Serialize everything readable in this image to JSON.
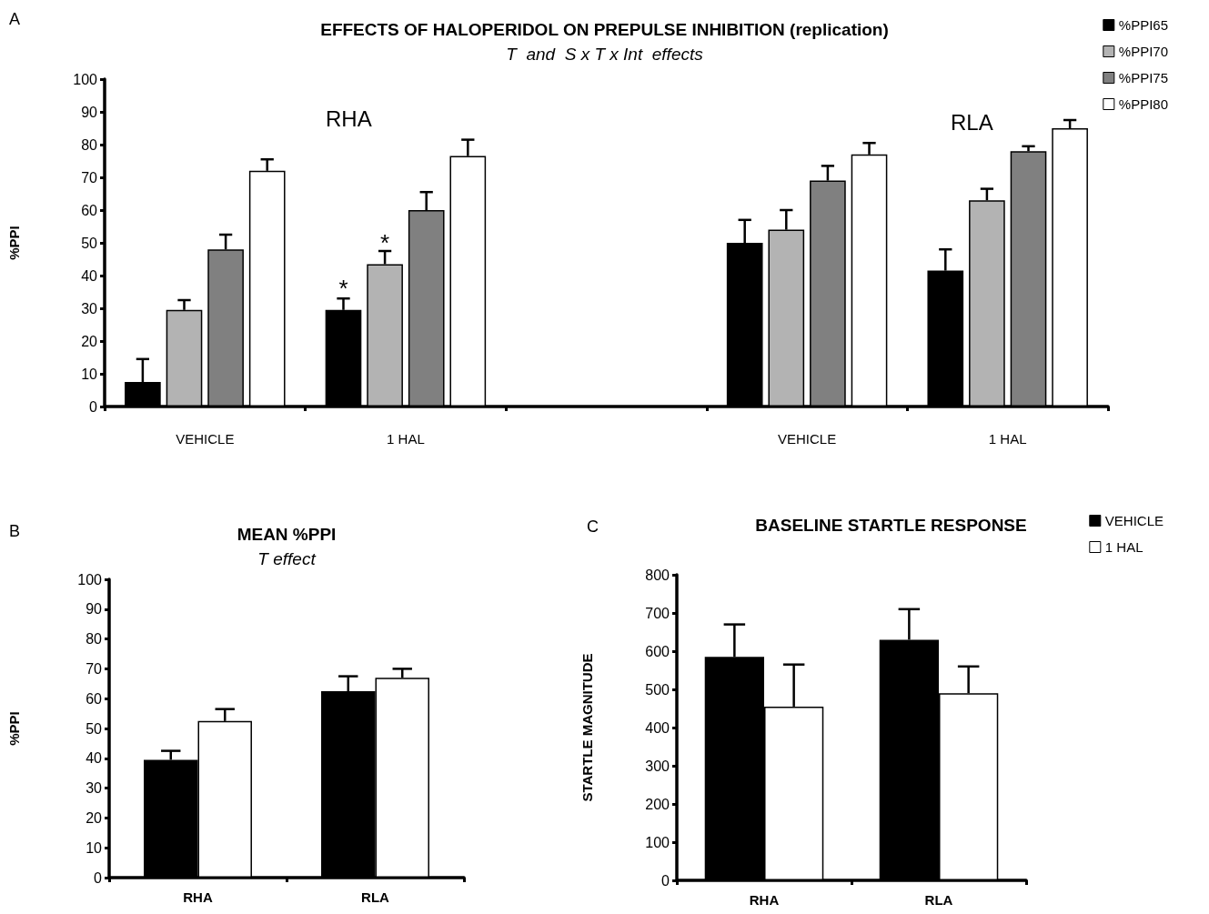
{
  "chart_data": [
    {
      "type": "bar",
      "title": "EFFECTS OF HALOPERIDOL ON PREPULSE INHIBITION (replication)",
      "subtitle": "T  and  S x T x Int  effects",
      "ylabel": "%PPI",
      "categories": [
        "VEHICLE",
        "1 HAL",
        null,
        "VEHICLE",
        "1 HAL"
      ],
      "series": [
        {
          "name": "%PPI65",
          "color": "#000000",
          "values": [
            7.5,
            29.5,
            null,
            50,
            41.5
          ],
          "errors": [
            [
              7.5,
              14.5
            ],
            [
              29.5,
              33
            ],
            null,
            [
              50,
              57
            ],
            [
              41.5,
              48
            ]
          ]
        },
        {
          "name": "%PPI70",
          "color": "#b3b3b3",
          "values": [
            29.5,
            43.5,
            null,
            54,
            63
          ],
          "errors": [
            [
              29.5,
              32.5
            ],
            [
              43.5,
              47.5
            ],
            null,
            [
              54,
              60
            ],
            [
              63,
              66.5
            ]
          ]
        },
        {
          "name": "%PPI75",
          "color": "#808080",
          "values": [
            48,
            60,
            null,
            69,
            78
          ],
          "errors": [
            [
              48,
              52.5
            ],
            [
              60,
              65.5
            ],
            null,
            [
              69,
              73.5
            ],
            [
              78,
              79.5
            ]
          ]
        },
        {
          "name": "%PPI80",
          "color": "#ffffff",
          "values": [
            72,
            76.5,
            null,
            77,
            85
          ],
          "errors": [
            [
              72,
              75.5
            ],
            [
              76.5,
              81.5
            ],
            null,
            [
              77,
              80.5
            ],
            [
              85,
              87.5
            ]
          ]
        }
      ],
      "ylim": [
        0,
        100
      ],
      "yticks": [
        0,
        10,
        20,
        30,
        40,
        50,
        60,
        70,
        80,
        90,
        100
      ],
      "grid": false,
      "legend": "top right",
      "annotations": [
        "A",
        "RHA",
        "RLA",
        {
          "text": "*",
          "x": "1 HAL",
          "y": 36
        },
        {
          "text": "*",
          "x": "1 HAL",
          "y": 50
        }
      ]
    },
    {
      "type": "bar",
      "title": "MEAN %PPI",
      "subtitle": "T effect",
      "ylabel": "%PPI",
      "categories": [
        "RHA",
        "RLA"
      ],
      "series": [
        {
          "color": "#000000",
          "values": [
            39.5,
            62.5
          ],
          "errors": [
            [
              39.5,
              42.5
            ],
            [
              62.5,
              67.5
            ]
          ]
        },
        {
          "color": "#ffffff",
          "values": [
            52.5,
            67
          ],
          "errors": [
            [
              52.5,
              56.5
            ],
            [
              67,
              70
            ]
          ]
        }
      ],
      "ylim": [
        0,
        100
      ],
      "yticks": [
        0,
        10,
        20,
        30,
        40,
        50,
        60,
        70,
        80,
        90,
        100
      ],
      "grid": false,
      "annotations": [
        "B"
      ]
    },
    {
      "type": "bar",
      "title": "BASELINE STARTLE RESPONSE",
      "ylabel": "STARTLE MAGNITUDE",
      "categories": [
        "RHA",
        "RLA"
      ],
      "series": [
        {
          "name": "VEHICLE",
          "color": "#000000",
          "values": [
            585,
            630
          ],
          "errors": [
            [
              585,
              670
            ],
            [
              630,
              710
            ]
          ]
        },
        {
          "name": "1 HAL",
          "color": "#ffffff",
          "values": [
            455,
            490
          ],
          "errors": [
            [
              455,
              565
            ],
            [
              490,
              560
            ]
          ]
        }
      ],
      "ylim": [
        0,
        800
      ],
      "yticks": [
        0,
        100,
        200,
        300,
        400,
        500,
        600,
        700,
        800
      ],
      "grid": false,
      "legend": "top right",
      "annotations": [
        "C"
      ]
    }
  ]
}
